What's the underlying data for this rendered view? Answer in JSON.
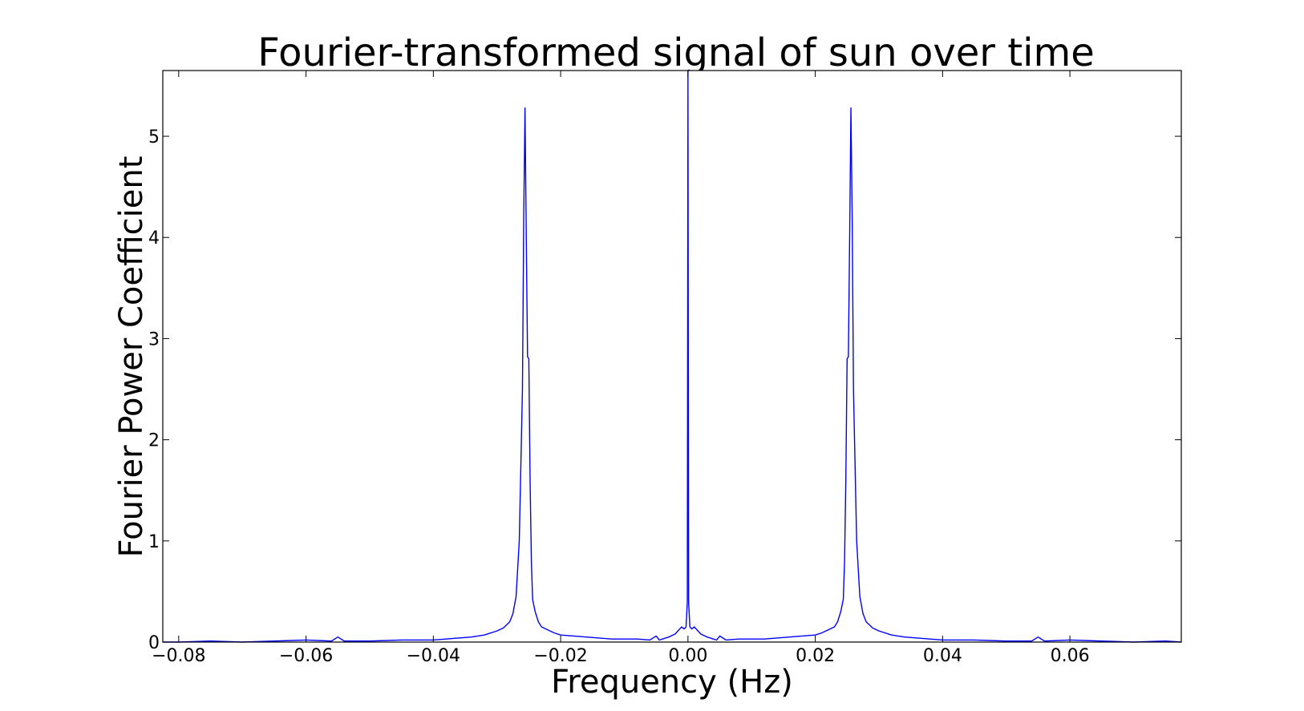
{
  "chart_data": {
    "type": "line",
    "title": "Fourier-transformed signal of sun over time",
    "xlabel": "Frequency (Hz)",
    "ylabel": "Fourier Power Coefficient",
    "xlim": [
      -0.0825,
      0.0775
    ],
    "ylim": [
      0,
      5.65
    ],
    "xticks": [
      -0.08,
      -0.06,
      -0.04,
      -0.02,
      0.0,
      0.02,
      0.04,
      0.06
    ],
    "xtick_labels": [
      "−0.08",
      "−0.06",
      "−0.04",
      "−0.02",
      "0.00",
      "0.02",
      "0.04",
      "0.06"
    ],
    "yticks": [
      0,
      1,
      2,
      3,
      4,
      5
    ],
    "ytick_labels": [
      "0",
      "1",
      "2",
      "3",
      "4",
      "5"
    ],
    "grid": false,
    "series": [
      {
        "color": "#0000ff",
        "x": [
          -0.0825,
          -0.08,
          -0.075,
          -0.07,
          -0.065,
          -0.06,
          -0.056,
          -0.055,
          -0.054,
          -0.05,
          -0.045,
          -0.04,
          -0.036,
          -0.034,
          -0.032,
          -0.03,
          -0.029,
          -0.028,
          -0.0275,
          -0.027,
          -0.0265,
          -0.026,
          -0.0258,
          -0.0256,
          -0.0254,
          -0.0252,
          -0.025,
          -0.0248,
          -0.0246,
          -0.0244,
          -0.024,
          -0.0235,
          -0.023,
          -0.022,
          -0.021,
          -0.02,
          -0.018,
          -0.016,
          -0.014,
          -0.012,
          -0.01,
          -0.008,
          -0.006,
          -0.005,
          -0.0045,
          -0.004,
          -0.003,
          -0.002,
          -0.001,
          -0.0006,
          -0.0003,
          -0.0001,
          0.0,
          0.0001,
          0.0003,
          0.0006,
          0.001,
          0.002,
          0.003,
          0.004,
          0.0045,
          0.005,
          0.006,
          0.008,
          0.01,
          0.012,
          0.014,
          0.016,
          0.018,
          0.02,
          0.021,
          0.022,
          0.023,
          0.0235,
          0.024,
          0.0244,
          0.0246,
          0.0248,
          0.025,
          0.0252,
          0.0254,
          0.0256,
          0.0258,
          0.026,
          0.0265,
          0.027,
          0.0275,
          0.028,
          0.029,
          0.03,
          0.032,
          0.034,
          0.036,
          0.04,
          0.045,
          0.05,
          0.054,
          0.055,
          0.056,
          0.06,
          0.065,
          0.07,
          0.075,
          0.0775
        ],
        "y": [
          0.0,
          0.0,
          0.01,
          0.0,
          0.01,
          0.02,
          0.01,
          0.05,
          0.01,
          0.01,
          0.02,
          0.02,
          0.04,
          0.05,
          0.07,
          0.11,
          0.14,
          0.2,
          0.28,
          0.45,
          1.0,
          2.5,
          4.2,
          5.28,
          4.0,
          2.82,
          2.8,
          1.6,
          0.8,
          0.42,
          0.3,
          0.2,
          0.15,
          0.12,
          0.09,
          0.07,
          0.06,
          0.05,
          0.04,
          0.03,
          0.03,
          0.03,
          0.02,
          0.06,
          0.02,
          0.03,
          0.05,
          0.08,
          0.15,
          0.13,
          0.15,
          0.4,
          5.65,
          0.4,
          0.15,
          0.13,
          0.15,
          0.08,
          0.05,
          0.03,
          0.02,
          0.06,
          0.02,
          0.03,
          0.03,
          0.03,
          0.04,
          0.05,
          0.06,
          0.07,
          0.09,
          0.12,
          0.15,
          0.2,
          0.3,
          0.42,
          0.8,
          1.6,
          2.8,
          2.82,
          4.0,
          5.28,
          4.2,
          2.5,
          1.0,
          0.45,
          0.28,
          0.2,
          0.14,
          0.11,
          0.07,
          0.05,
          0.04,
          0.02,
          0.02,
          0.01,
          0.01,
          0.05,
          0.01,
          0.02,
          0.01,
          0.0,
          0.01,
          0.0
        ]
      }
    ]
  }
}
